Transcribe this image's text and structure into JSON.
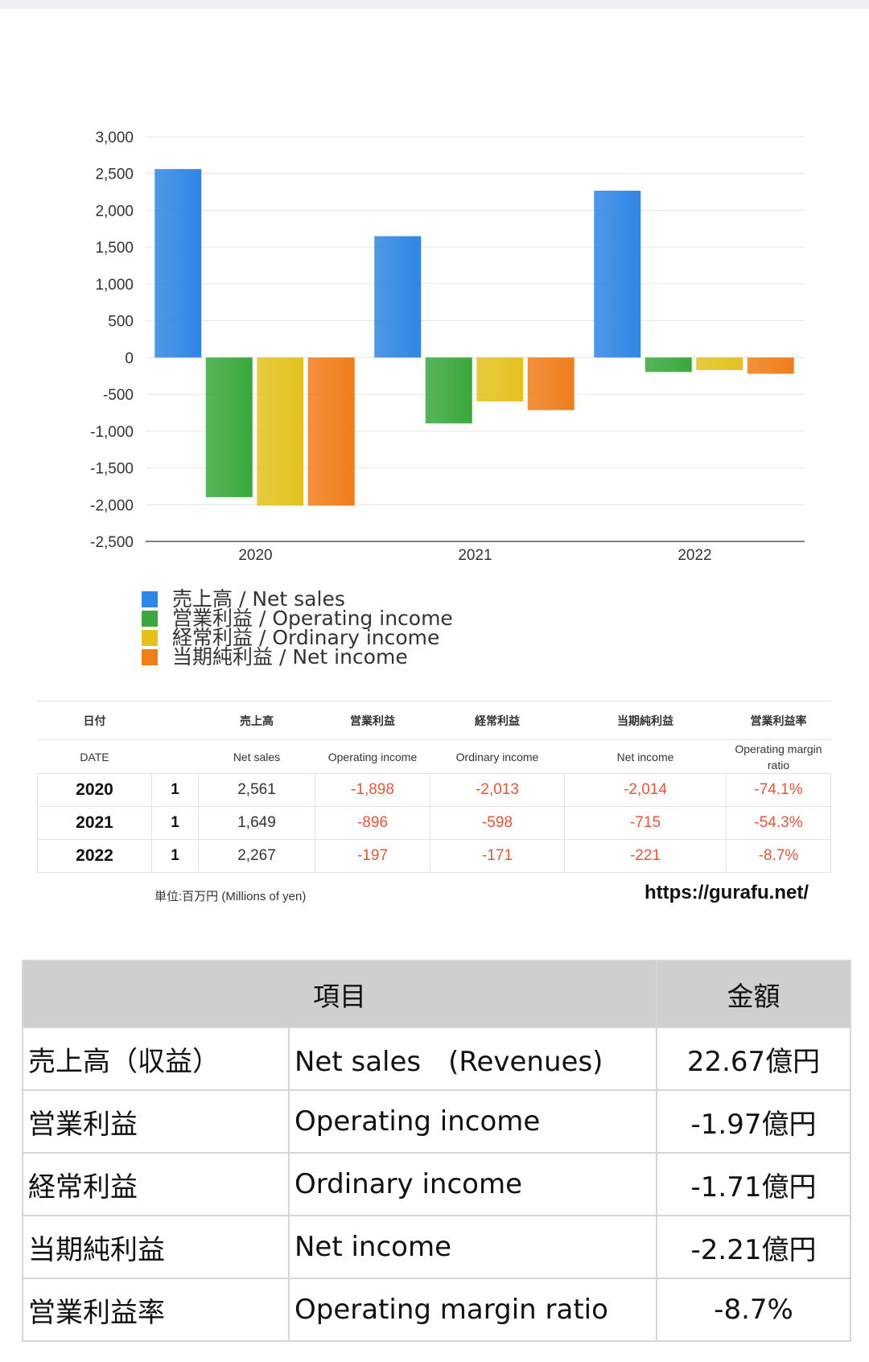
{
  "chart_data": {
    "type": "bar",
    "categories": [
      "2020",
      "2021",
      "2022"
    ],
    "series": [
      {
        "name": "売上高 / Net sales",
        "color": "#2f86e4",
        "values": [
          2561,
          1649,
          2267
        ]
      },
      {
        "name": "営業利益 / Operating income",
        "color": "#3aa83c",
        "values": [
          -1898,
          -896,
          -197
        ]
      },
      {
        "name": "経常利益 / Ordinary income",
        "color": "#e3c21e",
        "values": [
          -2013,
          -598,
          -171
        ]
      },
      {
        "name": "当期純利益 / Net income",
        "color": "#f07d1a",
        "values": [
          -2014,
          -715,
          -221
        ]
      }
    ],
    "ylim": [
      -2500,
      3000
    ],
    "yticks": [
      3000,
      2500,
      2000,
      1500,
      1000,
      500,
      0,
      -500,
      -1000,
      -1500,
      -2000,
      -2500
    ],
    "ytick_labels": [
      "3,000",
      "2,500",
      "2,000",
      "1,500",
      "1,000",
      "500",
      "0",
      "-500",
      "-1,000",
      "-1,500",
      "-2,000",
      "-2,500"
    ],
    "grid": true,
    "legend_position": "bottom-left"
  },
  "summary_table": {
    "headers_jp": [
      "日付",
      "",
      "売上高",
      "営業利益",
      "経常利益",
      "当期純利益",
      "営業利益率"
    ],
    "headers_en": [
      "DATE",
      "",
      "Net sales",
      "Operating income",
      "Ordinary income",
      "Net income",
      "Operating margin ratio"
    ],
    "rows": [
      [
        "2020",
        "1",
        "2,561",
        "-1,898",
        "-2,013",
        "-2,014",
        "-74.1%"
      ],
      [
        "2021",
        "1",
        "1,649",
        "-896",
        "-598",
        "-715",
        "-54.3%"
      ],
      [
        "2022",
        "1",
        "2,267",
        "-197",
        "-171",
        "-221",
        "-8.7%"
      ]
    ],
    "unit_note": "単位:百万円 (Millions of yen)",
    "site_url": "https://gurafu.net/"
  },
  "metrics_table": {
    "header_item": "項目",
    "header_amount": "金額",
    "rows": [
      {
        "jp": "売上高（収益）",
        "en": "Net sales　(Revenues)",
        "amount": "22.67億円"
      },
      {
        "jp": "営業利益",
        "en": "Operating income",
        "amount": "-1.97億円"
      },
      {
        "jp": "経常利益",
        "en": "Ordinary income",
        "amount": "-1.71億円"
      },
      {
        "jp": "当期純利益",
        "en": "Net income",
        "amount": "-2.21億円"
      },
      {
        "jp": "営業利益率",
        "en": "Operating margin ratio",
        "amount": "-8.7%"
      }
    ]
  }
}
